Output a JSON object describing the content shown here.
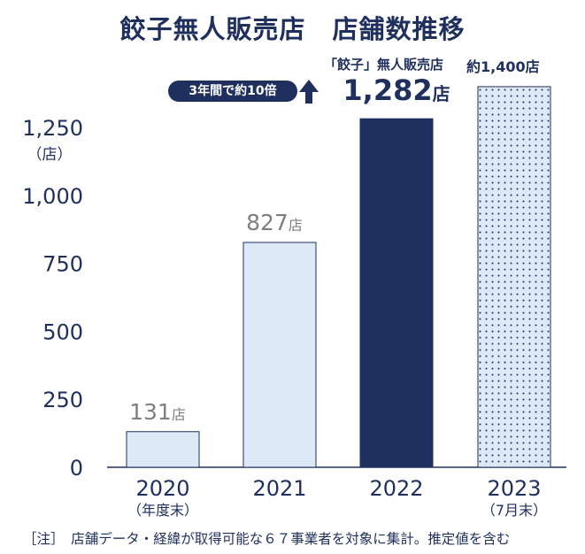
{
  "title": "餃子無人販売店　店舗数推移",
  "note": "［注］　店舗データ・経緯が取得可能な６７事業者を対象に集計。推定値を含む",
  "badge": {
    "text": "3年間で約10倍",
    "icon": "arrow-up-icon"
  },
  "annotations": {
    "label_2022": "「餃子」無人販売店",
    "label_2023": "約1,400店"
  },
  "colors": {
    "navy": "#1f2f5e",
    "light_bar": "#dde9f7",
    "gray_label": "#7f7f7f"
  },
  "chart_data": {
    "type": "bar",
    "title": "餃子無人販売店　店舗数推移",
    "ylabel": "（店）",
    "ylim": [
      0,
      1400
    ],
    "yticks": [
      0,
      250,
      500,
      750,
      1000,
      1250
    ],
    "ytick_labels": [
      "0",
      "250",
      "500",
      "750",
      "1,000",
      "1,250"
    ],
    "categories": [
      "2020",
      "2021",
      "2022",
      "2023"
    ],
    "category_sublabels": [
      "（年度末）",
      "",
      "",
      "（7月末）"
    ],
    "values": [
      131,
      827,
      1282,
      1400
    ],
    "value_labels": [
      "131",
      "827",
      "1,282",
      ""
    ],
    "value_unit": "店",
    "styles": [
      "light",
      "light",
      "navy",
      "dotted"
    ],
    "grid": false
  }
}
